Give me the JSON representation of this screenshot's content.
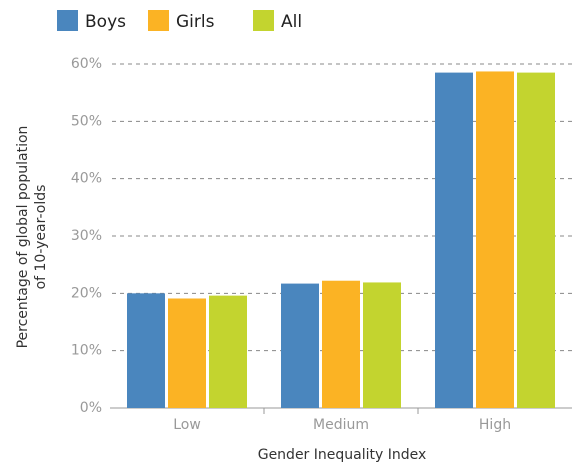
{
  "chart_data": {
    "type": "bar",
    "categories": [
      "Low",
      "Medium",
      "High"
    ],
    "series": [
      {
        "name": "Boys",
        "color": "#4a86be",
        "values": [
          20,
          21.7,
          58.5
        ]
      },
      {
        "name": "Girls",
        "color": "#fbb324",
        "values": [
          19.1,
          22.2,
          58.7
        ]
      },
      {
        "name": "All",
        "color": "#c3d42f",
        "values": [
          19.6,
          21.9,
          58.5
        ]
      }
    ],
    "xlabel": "Gender Inequality Index",
    "ylabel": [
      "Percentage of global population",
      "of 10-year-olds"
    ],
    "ylim": [
      0,
      60
    ],
    "yticks": [
      {
        "value": 0,
        "label": "0%"
      },
      {
        "value": 10,
        "label": "10%"
      },
      {
        "value": 20,
        "label": "20%"
      },
      {
        "value": 30,
        "label": "30%"
      },
      {
        "value": 40,
        "label": "40%"
      },
      {
        "value": 50,
        "label": "50%"
      },
      {
        "value": 60,
        "label": "60%"
      }
    ],
    "grid": true,
    "legend": "top"
  }
}
